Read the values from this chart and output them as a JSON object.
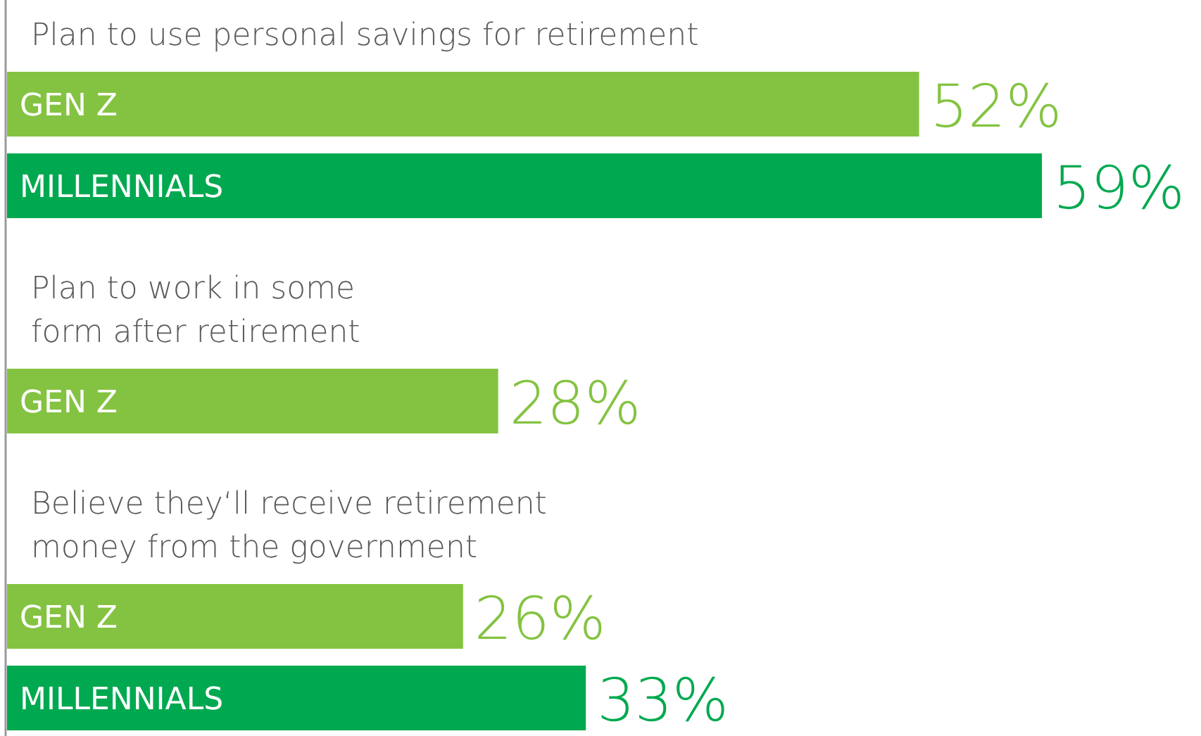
{
  "chart_data": {
    "type": "bar",
    "orientation": "horizontal",
    "categories": [
      "Plan to use personal savings for retirement",
      "Plan to work in some\nform after retirement",
      "Believe they‘ll receive retirement\nmoney from the government"
    ],
    "series": [
      {
        "name": "GEN Z",
        "color": "#84c341",
        "values": [
          52,
          28,
          26
        ],
        "value_labels": [
          "52%",
          "28%",
          "26%"
        ]
      },
      {
        "name": "MILLENNIALS",
        "color": "#00a94f",
        "values": [
          59,
          null,
          33
        ],
        "value_labels": [
          "59%",
          null,
          "33%"
        ]
      }
    ]
  }
}
